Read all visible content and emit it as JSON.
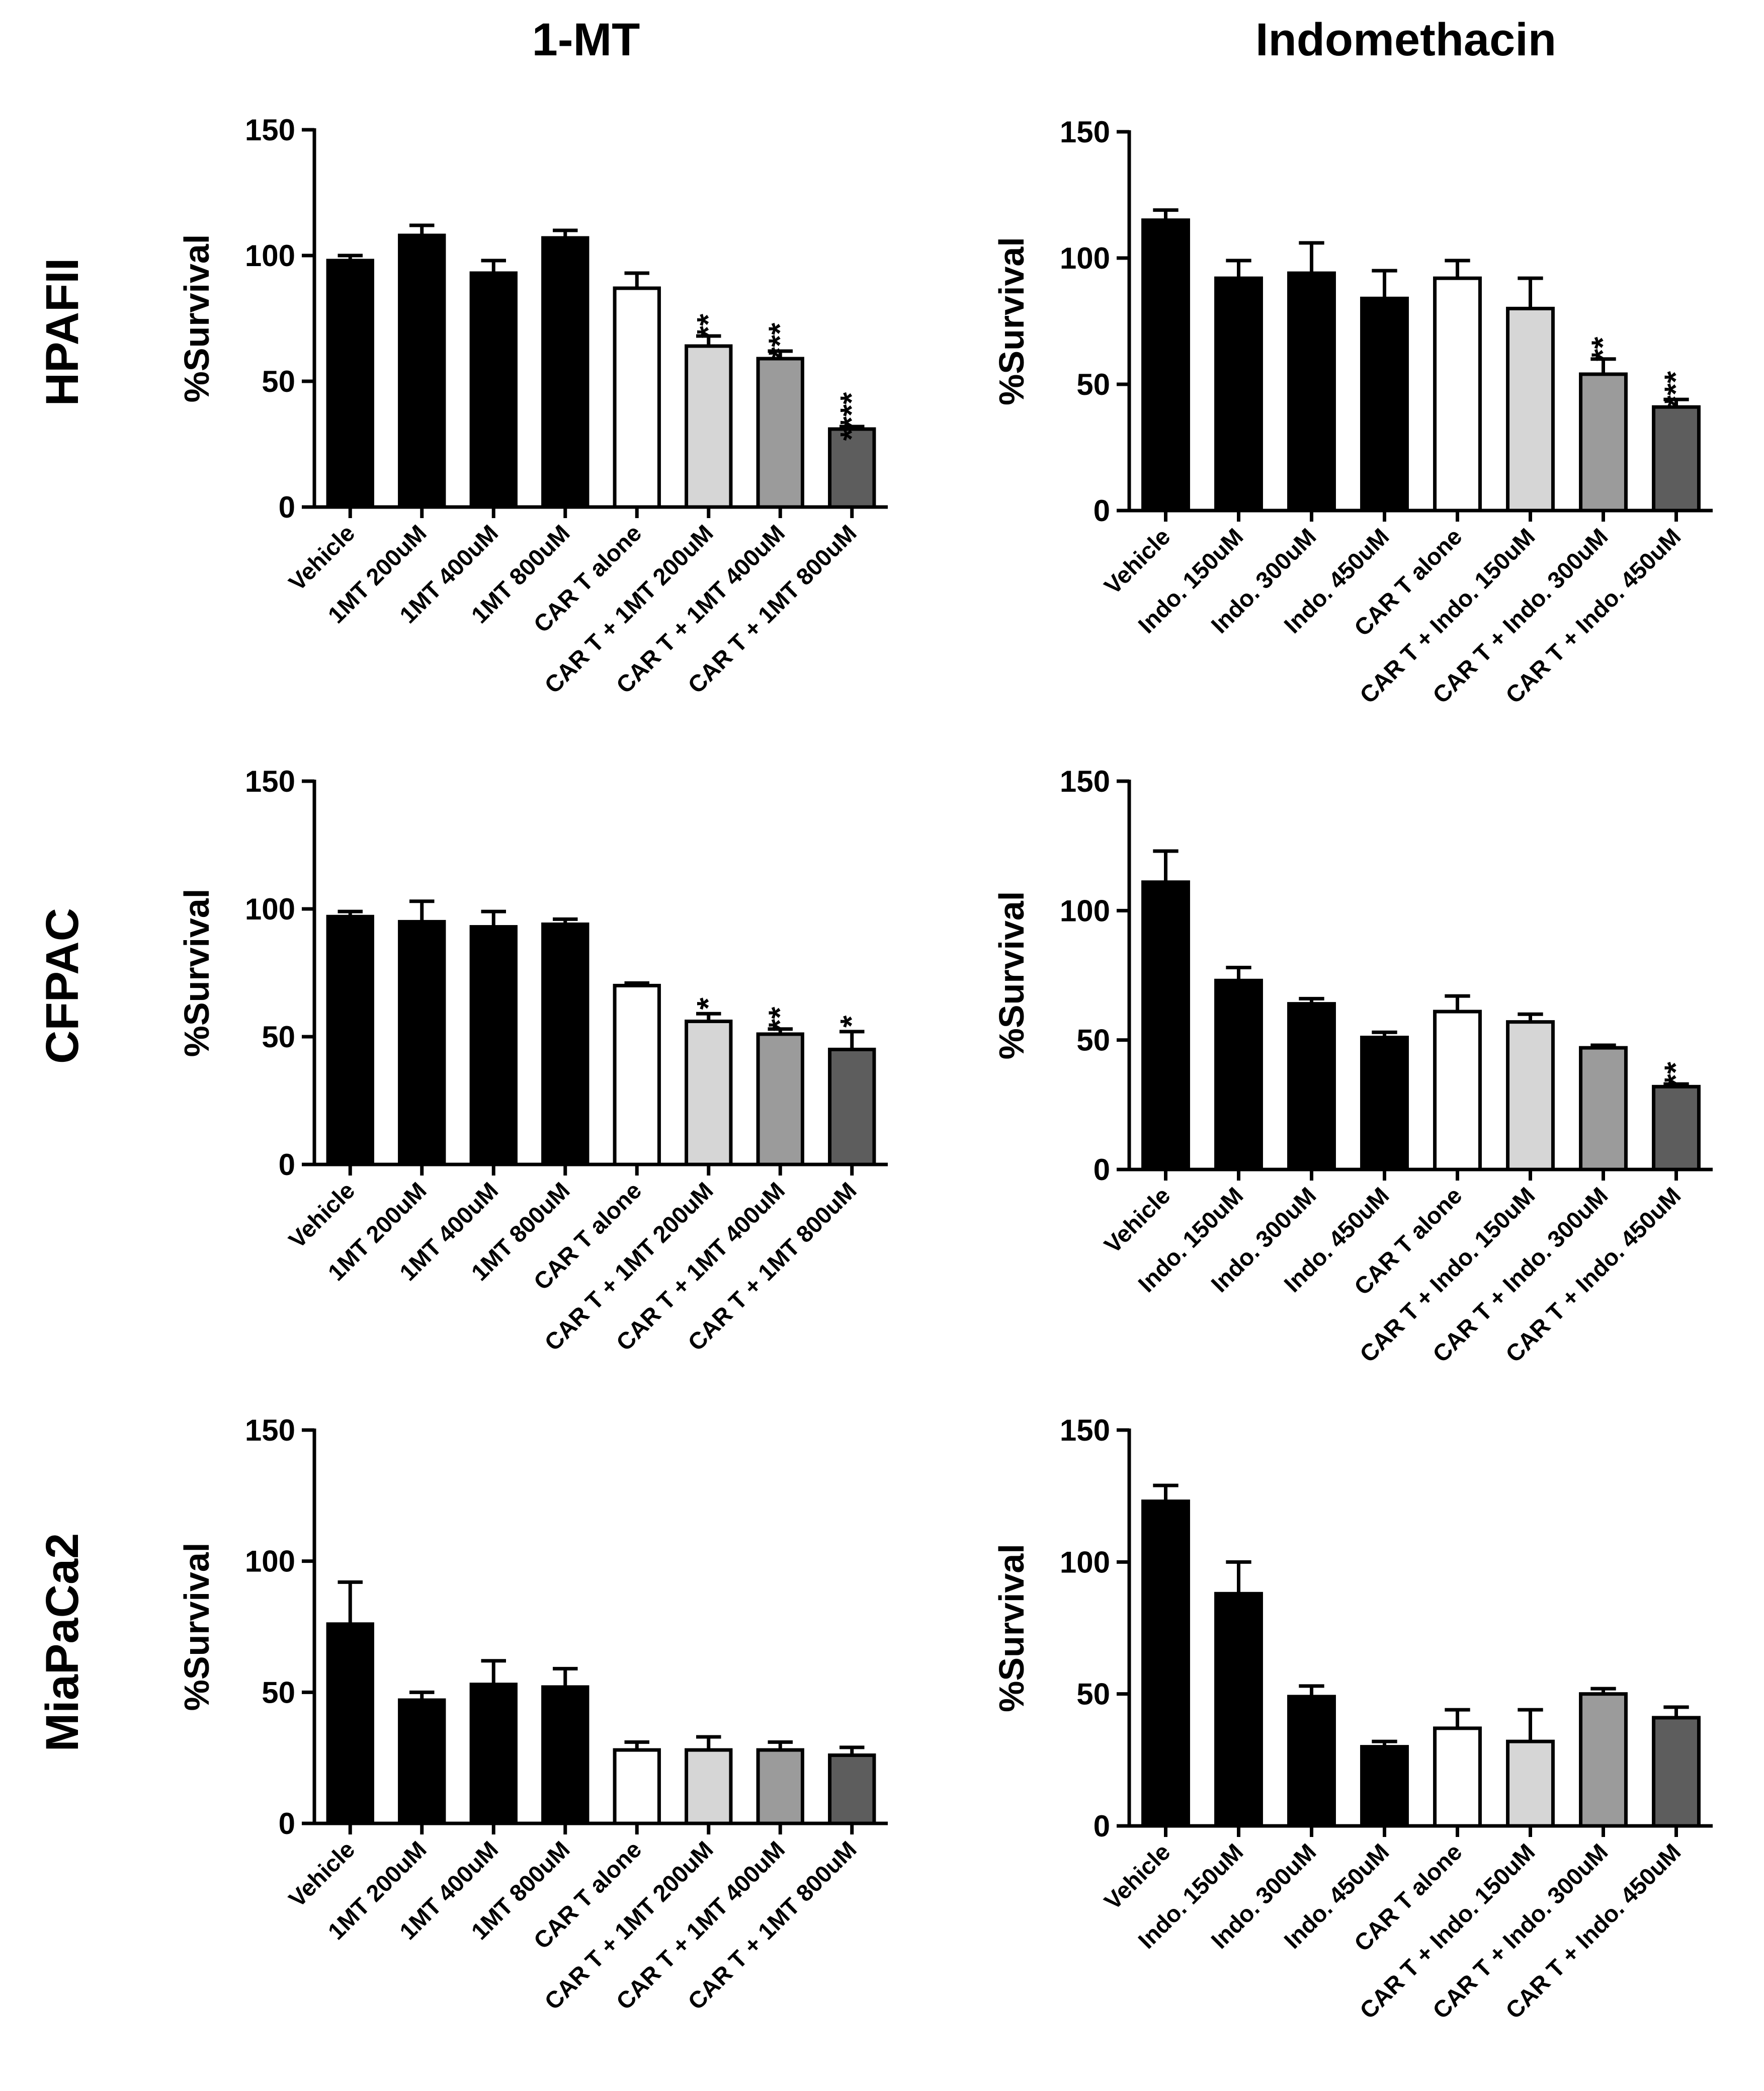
{
  "column_titles": [
    "1-MT",
    "Indomethacin"
  ],
  "row_labels": [
    "HPAFII",
    "CFPAC",
    "MiaPaCa2"
  ],
  "chart_data": [
    {
      "type": "bar",
      "panel": "HPAFII / 1-MT",
      "ylabel": "%Survival",
      "ylim": [
        0,
        150
      ],
      "yticks": [
        "0",
        "50",
        "100",
        "150"
      ],
      "categories": [
        "Vehicle",
        "1MT 200uM",
        "1MT 400uM",
        "1MT 800uM",
        "CAR T alone",
        "CAR T + 1MT 200uM",
        "CAR T + 1MT 400uM",
        "CAR T + 1MT 800uM"
      ],
      "values": [
        98,
        108,
        93,
        107,
        87,
        64,
        59,
        31
      ],
      "errors": [
        2,
        4,
        5,
        3,
        6,
        4,
        3,
        1
      ],
      "significance": [
        "",
        "",
        "",
        "",
        "",
        "**",
        "***",
        "****"
      ],
      "bar_colors": [
        "#000000",
        "#000000",
        "#000000",
        "#000000",
        "#ffffff",
        "#d6d6d6",
        "#9b9b9b",
        "#5d5d5d"
      ]
    },
    {
      "type": "bar",
      "panel": "HPAFII / Indomethacin",
      "ylabel": "%Survival",
      "ylim": [
        0,
        150
      ],
      "yticks": [
        "0",
        "50",
        "100",
        "150"
      ],
      "categories": [
        "Vehicle",
        "Indo. 150uM",
        "Indo. 300uM",
        "Indo. 450uM",
        "CAR T alone",
        "CAR T + Indo. 150uM",
        "CAR T + Indo. 300uM",
        "CAR T + Indo. 450uM"
      ],
      "values": [
        115,
        92,
        94,
        84,
        92,
        80,
        54,
        41
      ],
      "errors": [
        4,
        7,
        12,
        11,
        7,
        12,
        6,
        3
      ],
      "significance": [
        "",
        "",
        "",
        "",
        "",
        "",
        "**",
        "***"
      ],
      "bar_colors": [
        "#000000",
        "#000000",
        "#000000",
        "#000000",
        "#ffffff",
        "#d6d6d6",
        "#9b9b9b",
        "#5d5d5d"
      ]
    },
    {
      "type": "bar",
      "panel": "CFPAC / 1-MT",
      "ylabel": "%Survival",
      "ylim": [
        0,
        150
      ],
      "yticks": [
        "0",
        "50",
        "100",
        "150"
      ],
      "categories": [
        "Vehicle",
        "1MT 200uM",
        "1MT 400uM",
        "1MT 800uM",
        "CAR T alone",
        "CAR T + 1MT 200uM",
        "CAR T + 1MT 400uM",
        "CAR T + 1MT 800uM"
      ],
      "values": [
        97,
        95,
        93,
        94,
        70,
        56,
        51,
        45
      ],
      "errors": [
        2,
        8,
        6,
        2,
        1,
        3,
        2,
        7
      ],
      "significance": [
        "",
        "",
        "",
        "",
        "",
        "*",
        "**",
        "*"
      ],
      "bar_colors": [
        "#000000",
        "#000000",
        "#000000",
        "#000000",
        "#ffffff",
        "#d6d6d6",
        "#9b9b9b",
        "#5d5d5d"
      ]
    },
    {
      "type": "bar",
      "panel": "CFPAC / Indomethacin",
      "ylabel": "%Survival",
      "ylim": [
        0,
        150
      ],
      "yticks": [
        "0",
        "50",
        "100",
        "150"
      ],
      "categories": [
        "Vehicle",
        "Indo. 150uM",
        "Indo. 300uM",
        "Indo. 450uM",
        "CAR T alone",
        "CAR T + Indo. 150uM",
        "CAR T + Indo. 300uM",
        "CAR T + Indo. 450uM"
      ],
      "values": [
        111,
        73,
        64,
        51,
        61,
        57,
        47,
        32
      ],
      "errors": [
        12,
        5,
        2,
        2,
        6,
        3,
        1,
        1
      ],
      "significance": [
        "",
        "",
        "",
        "",
        "",
        "",
        "",
        "**"
      ],
      "bar_colors": [
        "#000000",
        "#000000",
        "#000000",
        "#000000",
        "#ffffff",
        "#d6d6d6",
        "#9b9b9b",
        "#5d5d5d"
      ]
    },
    {
      "type": "bar",
      "panel": "MiaPaCa2 / 1-MT",
      "ylabel": "%Survival",
      "ylim": [
        0,
        150
      ],
      "yticks": [
        "0",
        "50",
        "100",
        "150"
      ],
      "categories": [
        "Vehicle",
        "1MT 200uM",
        "1MT 400uM",
        "1MT 800uM",
        "CAR T alone",
        "CAR T + 1MT 200uM",
        "CAR T + 1MT 400uM",
        "CAR T + 1MT 800uM"
      ],
      "values": [
        76,
        47,
        53,
        52,
        28,
        28,
        28,
        26
      ],
      "errors": [
        16,
        3,
        9,
        7,
        3,
        5,
        3,
        3
      ],
      "significance": [
        "",
        "",
        "",
        "",
        "",
        "",
        "",
        ""
      ],
      "bar_colors": [
        "#000000",
        "#000000",
        "#000000",
        "#000000",
        "#ffffff",
        "#d6d6d6",
        "#9b9b9b",
        "#5d5d5d"
      ]
    },
    {
      "type": "bar",
      "panel": "MiaPaCa2 / Indomethacin",
      "ylabel": "%Survival",
      "ylim": [
        0,
        150
      ],
      "yticks": [
        "0",
        "50",
        "100",
        "150"
      ],
      "categories": [
        "Vehicle",
        "Indo. 150uM",
        "Indo. 300uM",
        "Indo. 450uM",
        "CAR T alone",
        "CAR T + Indo. 150uM",
        "CAR T + Indo. 300uM",
        "CAR T + Indo. 450uM"
      ],
      "values": [
        123,
        88,
        49,
        30,
        37,
        32,
        50,
        41
      ],
      "errors": [
        6,
        12,
        4,
        2,
        7,
        12,
        2,
        4
      ],
      "significance": [
        "",
        "",
        "",
        "",
        "",
        "",
        "",
        ""
      ],
      "bar_colors": [
        "#000000",
        "#000000",
        "#000000",
        "#000000",
        "#ffffff",
        "#d6d6d6",
        "#9b9b9b",
        "#5d5d5d"
      ]
    }
  ]
}
